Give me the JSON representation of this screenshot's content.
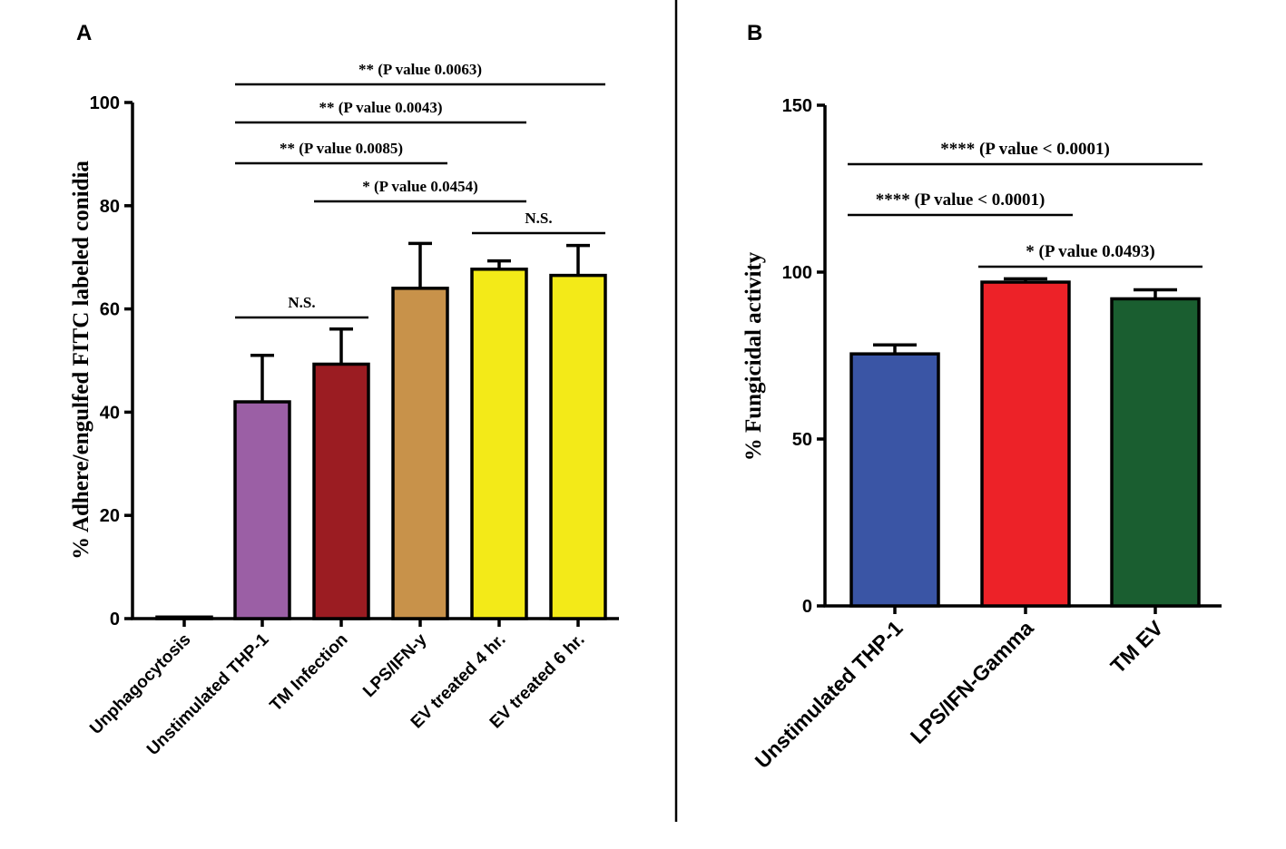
{
  "colors": {
    "axis": "#000000",
    "unphagocytosis": "#ffffff",
    "unstimulated": "#9b5fa5",
    "tm_infection": "#9b1c22",
    "lps_ifn": "#c8924a",
    "ev_treated": "#f3ea18",
    "b_unstimulated": "#3a55a5",
    "b_lps": "#ed2228",
    "b_tm_ev": "#1a5e30"
  },
  "chart_data": [
    {
      "panel": "A",
      "type": "bar",
      "ylabel": "% Adhere/engulfed FITC labeled conidia",
      "ylim": [
        0,
        100
      ],
      "yticks": [
        0,
        20,
        40,
        60,
        80,
        100
      ],
      "categories": [
        "Unphagocytosis",
        "Unstimulated THP-1",
        "TM Infection",
        "LPS/IFN-y",
        "EV treated 4 hr.",
        "EV treated 6 hr."
      ],
      "values": [
        0.3,
        42,
        49.3,
        64,
        67.7,
        66.5
      ],
      "errors": [
        0,
        9,
        6.8,
        8.7,
        1.6,
        5.8
      ],
      "bar_colors": [
        "#ffffff",
        "#9b5fa5",
        "#9b1c22",
        "#c8924a",
        "#f3ea18",
        "#f3ea18"
      ],
      "annotations": [
        {
          "text": "** (P value 0.0063)",
          "from": 1,
          "to": 5,
          "level": 1
        },
        {
          "text": "** (P value 0.0043)",
          "from": 1,
          "to": 4,
          "level": 2
        },
        {
          "text": "** (P value 0.0085)",
          "from": 1,
          "to": 3,
          "level": 3
        },
        {
          "text": "* (P value 0.0454)",
          "from": 2,
          "to": 4,
          "level": 4
        },
        {
          "text": "N.S.",
          "from": 4,
          "to": 5,
          "level": 5
        },
        {
          "text": "N.S.",
          "from": 1,
          "to": 2,
          "level": 6
        }
      ]
    },
    {
      "panel": "B",
      "type": "bar",
      "ylabel": "% Fungicidal activity",
      "ylim": [
        0,
        150
      ],
      "yticks": [
        0,
        50,
        100,
        150
      ],
      "categories": [
        "Unstimulated THP-1",
        "LPS/IFN-Gamma",
        "TM EV"
      ],
      "values": [
        75.5,
        97,
        92
      ],
      "errors": [
        2.7,
        1,
        2.7
      ],
      "bar_colors": [
        "#3a55a5",
        "#ed2228",
        "#1a5e30"
      ],
      "annotations": [
        {
          "text": "**** (P value < 0.0001)",
          "from": 0,
          "to": 2,
          "level": 1
        },
        {
          "text": "**** (P value < 0.0001)",
          "from": 0,
          "to": 1,
          "level": 2
        },
        {
          "text": "* (P value 0.0493)",
          "from": 1,
          "to": 2,
          "level": 3
        }
      ]
    }
  ]
}
